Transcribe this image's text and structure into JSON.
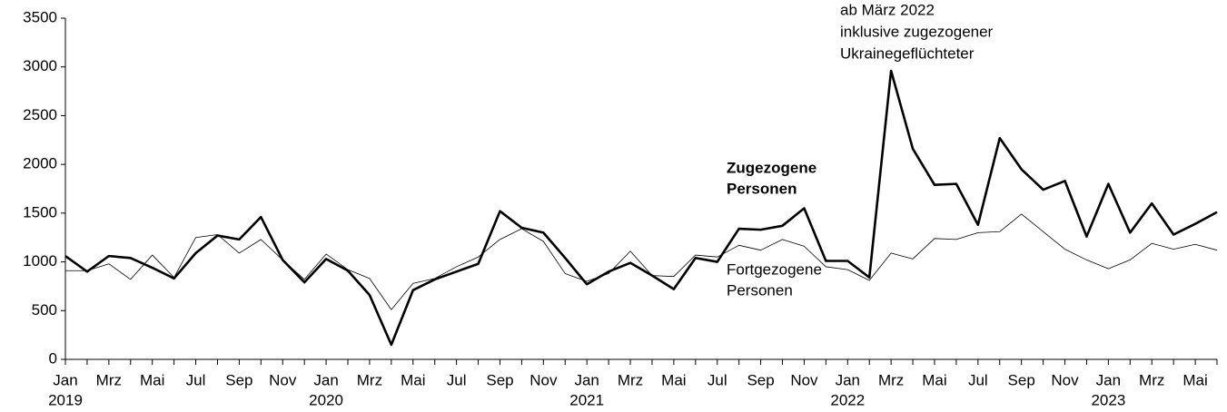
{
  "chart_data": {
    "type": "line",
    "categories": [
      "Jan",
      null,
      "Mrz",
      null,
      "Mai",
      null,
      "Jul",
      null,
      "Sep",
      null,
      "Nov",
      null,
      "Jan",
      null,
      "Mrz",
      null,
      "Mai",
      null,
      "Jul",
      null,
      "Sep",
      null,
      "Nov",
      null,
      "Jan",
      null,
      "Mrz",
      null,
      "Mai",
      null,
      "Jul",
      null,
      "Sep",
      null,
      "Nov",
      null,
      "Jan",
      null,
      "Mrz",
      null,
      "Mai",
      null,
      "Jul",
      null,
      "Sep",
      null,
      "Nov",
      null,
      "Jan",
      null,
      "Mrz",
      null,
      "Mai",
      null
    ],
    "years": [
      "2019",
      "2020",
      "2021",
      "2022",
      "2023"
    ],
    "series": [
      {
        "name": [
          "Zugezogene",
          "Personen"
        ],
        "color": "#000000",
        "values": [
          1060,
          900,
          1060,
          1040,
          940,
          830,
          1090,
          1270,
          1230,
          1460,
          1020,
          790,
          1030,
          910,
          660,
          150,
          710,
          820,
          900,
          980,
          1520,
          1350,
          1300,
          1040,
          770,
          900,
          990,
          860,
          720,
          1040,
          1000,
          1340,
          1330,
          1370,
          1550,
          1010,
          1010,
          840,
          2960,
          2160,
          1790,
          1800,
          1380,
          2270,
          1950,
          1740,
          1830,
          1260,
          1800,
          1300,
          1600,
          1280,
          1390,
          1510
        ]
      },
      {
        "name": [
          "Fortgezogene",
          "Personen"
        ],
        "color": "#000000",
        "values": [
          910,
          910,
          980,
          820,
          1070,
          840,
          1250,
          1280,
          1090,
          1230,
          1020,
          820,
          1080,
          920,
          830,
          510,
          780,
          830,
          950,
          1050,
          1230,
          1340,
          1210,
          880,
          800,
          880,
          1110,
          860,
          850,
          1070,
          1050,
          1170,
          1120,
          1230,
          1160,
          950,
          920,
          810,
          1090,
          1030,
          1240,
          1230,
          1300,
          1310,
          1490,
          1310,
          1130,
          1020,
          930,
          1020,
          1190,
          1130,
          1180,
          1120
        ]
      }
    ],
    "annotation": [
      "ab März 2022",
      "inklusive zugezogener",
      "Ukrainegeflüchteter"
    ],
    "ylim": [
      0,
      3500
    ],
    "yticks": [
      0,
      500,
      1000,
      1500,
      2000,
      2500,
      3000,
      3500
    ]
  }
}
